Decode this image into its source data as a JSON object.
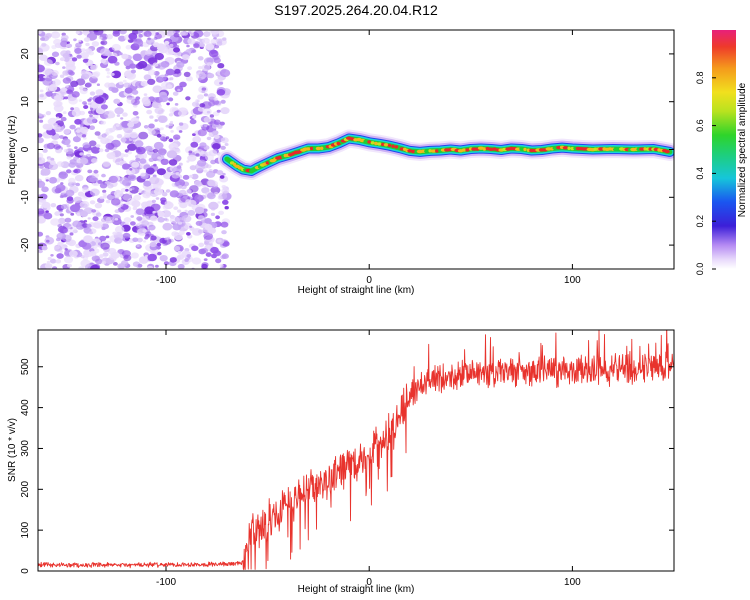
{
  "title": "S197.2025.264.20.04.R12",
  "colors": {
    "signal": "#e8332d",
    "noise_dots": "#8a3ee6",
    "track_core": "#e8282a",
    "track_mid": "#22cc33",
    "track_outer": "#2244ee",
    "track_glow": "#18d6d6"
  },
  "chart_data": [
    {
      "type": "heatmap",
      "name": "spectrogram",
      "xlabel": "Height of straight line (km)",
      "ylabel": "Frequency (Hz)",
      "xlim": [
        -163,
        150
      ],
      "ylim": [
        -25,
        25
      ],
      "xticks": [
        -100,
        0,
        100
      ],
      "yticks": [
        -20,
        -10,
        0,
        10,
        20
      ],
      "noise_region_x": [
        -163,
        -70
      ],
      "colorbar": {
        "label": "Normalized spectral amplitude",
        "range": [
          0,
          1
        ],
        "ticks": [
          0.0,
          0.2,
          0.4,
          0.6,
          0.8
        ]
      },
      "track": {
        "x": [
          -70,
          -65,
          -62,
          -58,
          -55,
          -50,
          -45,
          -40,
          -35,
          -30,
          -25,
          -20,
          -15,
          -10,
          -5,
          0,
          5,
          10,
          15,
          20,
          25,
          30,
          35,
          40,
          45,
          50,
          55,
          60,
          65,
          70,
          75,
          80,
          85,
          90,
          95,
          100,
          110,
          120,
          130,
          140,
          148
        ],
        "y": [
          -2,
          -3.5,
          -4.2,
          -4.5,
          -3.8,
          -2.8,
          -1.8,
          -1.2,
          -0.5,
          0.2,
          0.2,
          0.5,
          1.3,
          2.3,
          2.0,
          1.5,
          1.2,
          0.8,
          0.3,
          -0.3,
          -0.5,
          -0.3,
          -0.2,
          0.0,
          -0.2,
          0.1,
          0.2,
          0.1,
          -0.1,
          0.2,
          0.1,
          -0.2,
          -0.1,
          0.2,
          0.4,
          0.2,
          0.0,
          0.1,
          0.0,
          0.1,
          -0.5
        ]
      }
    },
    {
      "type": "line",
      "name": "snr",
      "xlabel": "Height of straight line (km)",
      "ylabel": "SNR (10 * v/v)",
      "xlim": [
        -163,
        150
      ],
      "ylim": [
        0,
        590
      ],
      "xticks": [
        -100,
        0,
        100
      ],
      "yticks": [
        0,
        100,
        200,
        300,
        400,
        500
      ],
      "series": [
        {
          "name": "SNR",
          "x": [
            -163,
            -150,
            -130,
            -110,
            -90,
            -70,
            -62,
            -58,
            -55,
            -50,
            -45,
            -40,
            -35,
            -30,
            -25,
            -20,
            -15,
            -10,
            -5,
            0,
            5,
            10,
            15,
            20,
            25,
            30,
            40,
            50,
            60,
            70,
            80,
            90,
            100,
            110,
            120,
            130,
            140,
            150
          ],
          "values": [
            15,
            15,
            14,
            15,
            16,
            17,
            20,
            95,
            105,
            120,
            140,
            165,
            185,
            200,
            210,
            225,
            240,
            255,
            270,
            285,
            305,
            340,
            380,
            430,
            455,
            468,
            475,
            480,
            483,
            486,
            488,
            490,
            490,
            492,
            494,
            496,
            500,
            505
          ]
        }
      ]
    }
  ]
}
